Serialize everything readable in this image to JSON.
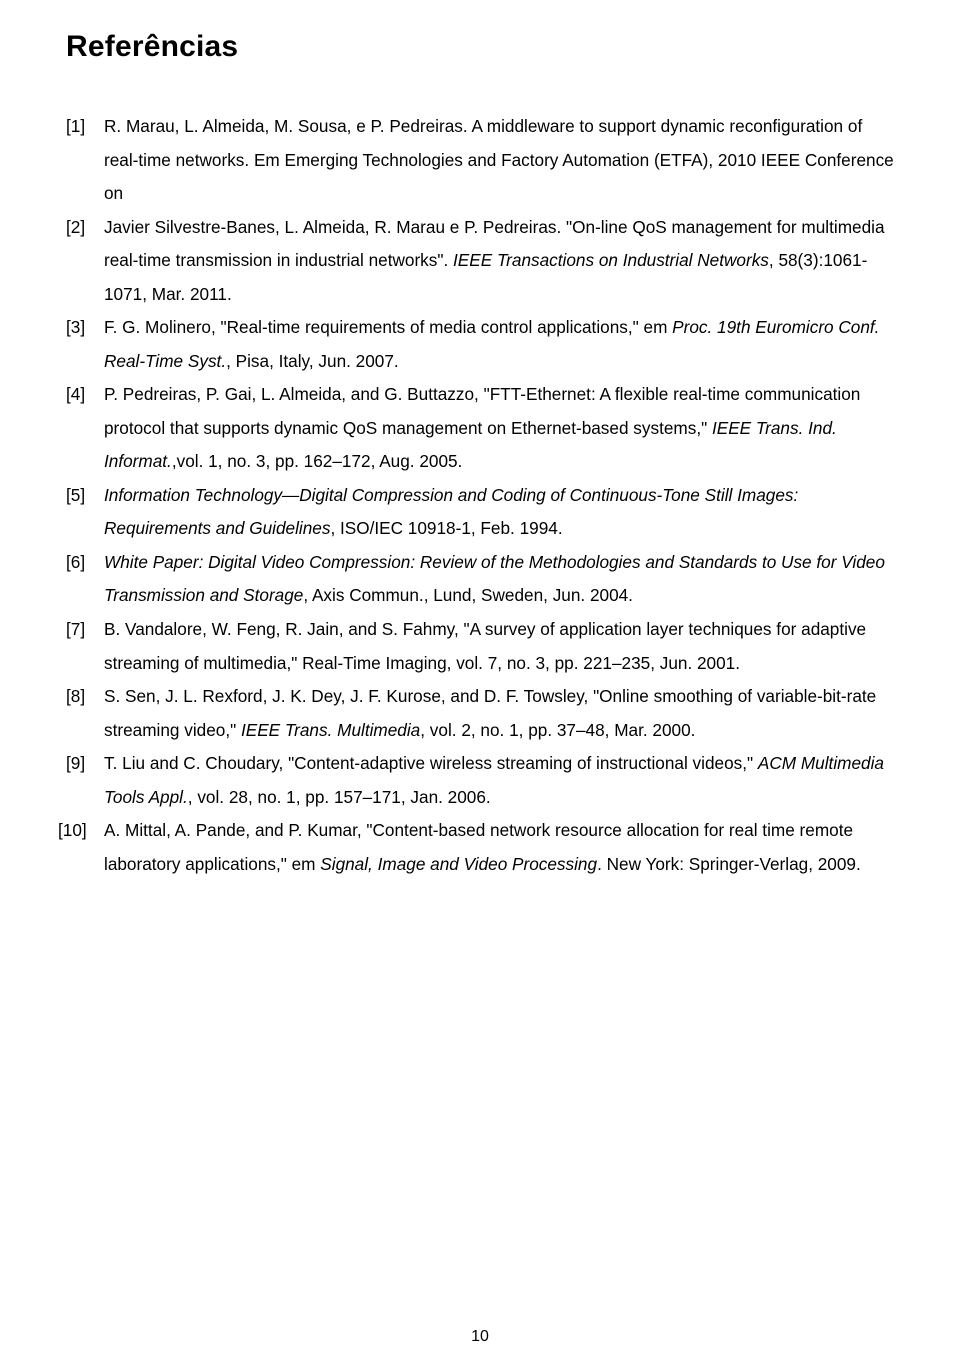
{
  "heading": "Referências",
  "page_number": "10",
  "colors": {
    "text": "#000000",
    "background": "#ffffff"
  },
  "typography": {
    "body_font": "Trebuchet MS",
    "heading_size_pt": 22,
    "body_size_pt": 13,
    "line_height": 1.95
  },
  "refs": [
    {
      "num": "[1]",
      "parts": [
        {
          "t": "R. Marau, L. Almeida, M. Sousa, e P. Pedreiras. A middleware to support dynamic reconfiguration of real-time networks. Em Emerging Technologies and Factory Automation (ETFA), 2010 IEEE Conference on"
        }
      ]
    },
    {
      "num": "[2]",
      "parts": [
        {
          "t": "Javier Silvestre-Banes, L. Almeida, R. Marau e P. Pedreiras. \"On-line QoS management for multimedia real-time transmission in industrial networks\". "
        },
        {
          "t": "IEEE Transactions on Industrial Networks",
          "i": true
        },
        {
          "t": ", 58(3):1061-1071, Mar. 2011."
        }
      ]
    },
    {
      "num": "[3]",
      "parts": [
        {
          "t": "F. G. Molinero, \"Real-time requirements of media control applications,\" em "
        },
        {
          "t": "Proc. 19th Euromicro Conf. Real-Time Syst.",
          "i": true
        },
        {
          "t": ", Pisa, Italy, Jun. 2007."
        }
      ]
    },
    {
      "num": "[4]",
      "parts": [
        {
          "t": "P. Pedreiras, P. Gai, L. Almeida, and G. Buttazzo, \"FTT-Ethernet: A flexible real-time communication protocol that supports dynamic QoS management on Ethernet-based systems,\" "
        },
        {
          "t": "IEEE Trans. Ind. Informat.",
          "i": true
        },
        {
          "t": ",vol. 1, no. 3, pp. 162–172, Aug. 2005."
        }
      ]
    },
    {
      "num": "[5]",
      "parts": [
        {
          "t": "Information Technology—Digital Compression and Coding of Continuous-Tone Still Images: Requirements and Guidelines",
          "i": true
        },
        {
          "t": ", ISO/IEC 10918-1, Feb. 1994."
        }
      ]
    },
    {
      "num": "[6]",
      "parts": [
        {
          "t": "White Paper: Digital Video Compression: Review of the Methodologies and Standards to Use for Video Transmission and Storage",
          "i": true
        },
        {
          "t": ", Axis Commun., Lund, Sweden, Jun. 2004."
        }
      ]
    },
    {
      "num": "[7]",
      "parts": [
        {
          "t": "B. Vandalore, W. Feng, R. Jain, and S. Fahmy, \"A survey of application layer techniques for adaptive streaming of multimedia,\" Real-Time Imaging, vol. 7, no. 3, pp. 221–235, Jun. 2001."
        }
      ]
    },
    {
      "num": "[8]",
      "parts": [
        {
          "t": "S. Sen, J. L. Rexford, J. K. Dey, J. F. Kurose, and D. F. Towsley, \"Online  smoothing of variable-bit-rate streaming video,\" "
        },
        {
          "t": "IEEE Trans. Multimedia",
          "i": true
        },
        {
          "t": ", vol. 2, no. 1, pp. 37–48, Mar. 2000."
        }
      ]
    },
    {
      "num": "[9]",
      "parts": [
        {
          "t": "T. Liu and C. Choudary, \"Content-adaptive wireless streaming of instructional videos,\" "
        },
        {
          "t": "ACM Multimedia Tools Appl.",
          "i": true
        },
        {
          "t": ", vol. 28, no. 1, pp. 157–171, Jan. 2006."
        }
      ]
    },
    {
      "num": "[10]",
      "parts": [
        {
          "t": "A. Mittal, A. Pande, and P. Kumar, \"Content-based network resource allocation for real time remote laboratory applications,\" em "
        },
        {
          "t": "Signal, Image and Video Processing",
          "i": true
        },
        {
          "t": ". New York: Springer-Verlag, 2009."
        }
      ]
    }
  ]
}
